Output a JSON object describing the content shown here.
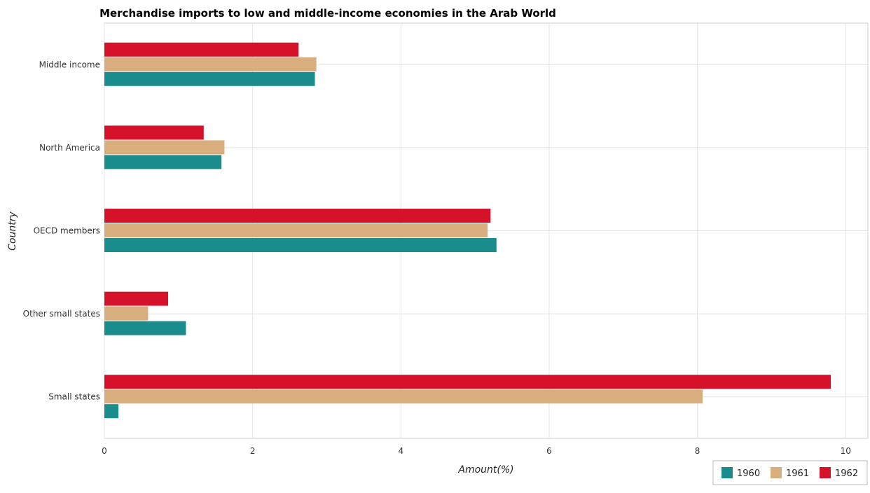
{
  "chart_data": {
    "type": "bar",
    "orientation": "horizontal",
    "title": "Merchandise imports to low and middle-income economies in the Arab World",
    "xlabel": "Amount(%)",
    "ylabel": "Country",
    "xlim": [
      0,
      10.3
    ],
    "xticks": [
      0,
      2,
      4,
      6,
      8,
      10
    ],
    "xtick_labels": [
      "0",
      "2",
      "4",
      "6",
      "8",
      "10"
    ],
    "grid": true,
    "legend_position": "bottom-right",
    "categories": [
      "Middle income",
      "North America",
      "OECD members",
      "Other small states",
      "Small states"
    ],
    "series": [
      {
        "name": "1960",
        "color": "#1a8c8c",
        "values": [
          2.84,
          1.58,
          5.29,
          1.1,
          0.19
        ]
      },
      {
        "name": "1961",
        "color": "#d9ae7e",
        "values": [
          2.86,
          1.62,
          5.17,
          0.59,
          8.07
        ]
      },
      {
        "name": "1962",
        "color": "#d6122a",
        "values": [
          2.62,
          1.34,
          5.21,
          0.86,
          9.8
        ]
      }
    ]
  }
}
